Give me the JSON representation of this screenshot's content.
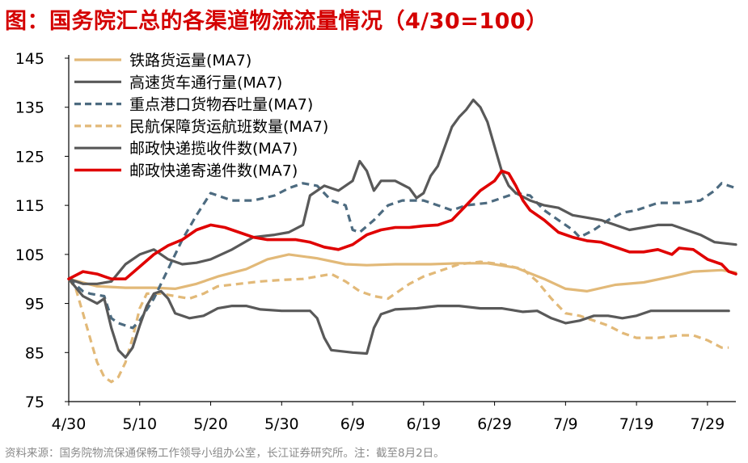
{
  "title": "图：国务院汇总的各渠道物流流量情况（4/30=100）",
  "source": "资料来源：国务院物流保通保畅工作领导小组办公室，长江证券研究所。注：截至8月2日。",
  "chart_data": {
    "type": "line",
    "ylim": [
      75,
      145
    ],
    "yticks": [
      75,
      85,
      95,
      105,
      115,
      125,
      135,
      145
    ],
    "ytick_labels": [
      "75",
      "85",
      "95",
      "105",
      "115",
      "125",
      "135",
      "145"
    ],
    "x_range": [
      0,
      94
    ],
    "xtick_positions": [
      0,
      10,
      20,
      30,
      40,
      50,
      60,
      70,
      80,
      90
    ],
    "xtick_labels": [
      "4/30",
      "5/10",
      "5/20",
      "5/30",
      "6/9",
      "6/19",
      "6/29",
      "7/9",
      "7/19",
      "7/29"
    ],
    "series": [
      {
        "name": "铁路货运量(MA7)",
        "color": "#e2b978",
        "style": "solid",
        "points": [
          [
            0,
            100
          ],
          [
            4,
            98.5
          ],
          [
            8,
            98.2
          ],
          [
            12,
            98.2
          ],
          [
            15,
            98
          ],
          [
            18,
            99
          ],
          [
            21,
            100.5
          ],
          [
            25,
            102
          ],
          [
            28,
            104
          ],
          [
            31,
            105
          ],
          [
            35,
            104.2
          ],
          [
            39,
            103
          ],
          [
            42,
            102.8
          ],
          [
            46,
            103
          ],
          [
            51,
            103
          ],
          [
            55,
            103.2
          ],
          [
            59,
            103.2
          ],
          [
            63,
            102.3
          ],
          [
            67,
            100
          ],
          [
            70,
            98
          ],
          [
            73,
            97.5
          ],
          [
            77,
            98.8
          ],
          [
            81,
            99.3
          ],
          [
            85,
            100.5
          ],
          [
            88,
            101.5
          ],
          [
            92,
            101.8
          ],
          [
            94,
            101.3
          ]
        ]
      },
      {
        "name": "高速货车通行量(MA7)",
        "color": "#595959",
        "style": "solid",
        "points": [
          [
            0,
            100
          ],
          [
            2,
            96.5
          ],
          [
            4,
            95
          ],
          [
            5,
            96
          ],
          [
            6,
            90
          ],
          [
            7,
            85.5
          ],
          [
            8,
            84
          ],
          [
            9,
            86
          ],
          [
            10,
            90.5
          ],
          [
            11,
            94.5
          ],
          [
            12,
            97
          ],
          [
            13,
            97.5
          ],
          [
            14,
            96
          ],
          [
            15,
            93
          ],
          [
            17,
            92
          ],
          [
            19,
            92.5
          ],
          [
            21,
            94
          ],
          [
            23,
            94.5
          ],
          [
            25,
            94.5
          ],
          [
            27,
            93.8
          ],
          [
            30,
            93.5
          ],
          [
            34,
            93.5
          ],
          [
            35,
            92
          ],
          [
            36,
            88
          ],
          [
            37,
            85.5
          ],
          [
            40,
            85
          ],
          [
            42,
            84.8
          ],
          [
            43,
            90
          ],
          [
            44,
            92.8
          ],
          [
            46,
            93.8
          ],
          [
            49,
            94
          ],
          [
            52,
            94.5
          ],
          [
            55,
            94.5
          ],
          [
            58,
            94
          ],
          [
            61,
            94
          ],
          [
            64,
            93.3
          ],
          [
            66,
            93.5
          ],
          [
            68,
            92
          ],
          [
            70,
            91
          ],
          [
            72,
            91.5
          ],
          [
            74,
            92.5
          ],
          [
            76,
            92.5
          ],
          [
            78,
            92
          ],
          [
            80,
            92.5
          ],
          [
            82,
            93.5
          ],
          [
            85,
            93.5
          ],
          [
            88,
            93.5
          ],
          [
            91,
            93.5
          ],
          [
            93,
            93.5
          ]
        ]
      },
      {
        "name": "重点港口货物吞吐量(MA7)",
        "color": "#4d6b80",
        "style": "dashed",
        "points": [
          [
            0,
            100
          ],
          [
            2,
            97.5
          ],
          [
            3,
            97
          ],
          [
            5,
            96.5
          ],
          [
            6,
            92
          ],
          [
            7,
            91
          ],
          [
            8,
            90.5
          ],
          [
            9,
            90
          ],
          [
            10,
            91.5
          ],
          [
            12,
            96
          ],
          [
            14,
            102
          ],
          [
            16,
            108
          ],
          [
            18,
            113
          ],
          [
            20,
            117.5
          ],
          [
            23,
            116
          ],
          [
            26,
            116
          ],
          [
            29,
            117
          ],
          [
            31,
            118.5
          ],
          [
            33,
            119.5
          ],
          [
            35,
            119
          ],
          [
            37,
            116
          ],
          [
            39,
            115
          ],
          [
            40,
            110
          ],
          [
            41,
            109.5
          ],
          [
            43,
            112
          ],
          [
            45,
            115
          ],
          [
            47,
            116
          ],
          [
            50,
            116
          ],
          [
            52,
            115
          ],
          [
            54,
            114
          ],
          [
            56,
            115
          ],
          [
            59,
            115.5
          ],
          [
            61,
            116.5
          ],
          [
            63,
            117.5
          ],
          [
            65,
            117
          ],
          [
            67,
            114
          ],
          [
            69,
            112
          ],
          [
            71,
            110
          ],
          [
            72,
            108.5
          ],
          [
            74,
            110
          ],
          [
            76,
            112
          ],
          [
            78,
            113.5
          ],
          [
            80,
            114
          ],
          [
            83,
            115.5
          ],
          [
            86,
            115.5
          ],
          [
            89,
            116
          ],
          [
            91,
            118
          ],
          [
            92,
            119.5
          ],
          [
            94,
            118.5
          ]
        ]
      },
      {
        "name": "民航保障货运航班数量(MA7)",
        "color": "#e2b978",
        "style": "dashed",
        "points": [
          [
            0,
            100
          ],
          [
            1,
            98
          ],
          [
            2,
            93
          ],
          [
            3,
            88
          ],
          [
            4,
            83
          ],
          [
            5,
            80
          ],
          [
            6,
            79
          ],
          [
            7,
            80
          ],
          [
            8,
            83
          ],
          [
            9,
            88
          ],
          [
            10,
            94
          ],
          [
            11,
            97
          ],
          [
            13,
            97
          ],
          [
            15,
            96.5
          ],
          [
            17,
            96
          ],
          [
            19,
            97
          ],
          [
            21,
            98.5
          ],
          [
            24,
            99
          ],
          [
            27,
            99.5
          ],
          [
            30,
            99.8
          ],
          [
            33,
            100
          ],
          [
            35,
            100.5
          ],
          [
            37,
            101
          ],
          [
            39,
            99.5
          ],
          [
            41,
            97.5
          ],
          [
            43,
            96.5
          ],
          [
            45,
            96
          ],
          [
            46,
            97
          ],
          [
            48,
            99
          ],
          [
            50,
            100.5
          ],
          [
            53,
            102
          ],
          [
            55,
            103
          ],
          [
            58,
            103.5
          ],
          [
            61,
            103
          ],
          [
            64,
            102
          ],
          [
            66,
            99.5
          ],
          [
            68,
            96
          ],
          [
            70,
            93
          ],
          [
            72,
            92.5
          ],
          [
            74,
            91.5
          ],
          [
            76,
            90.5
          ],
          [
            78,
            89
          ],
          [
            80,
            88
          ],
          [
            83,
            88
          ],
          [
            86,
            88.5
          ],
          [
            88,
            88.5
          ],
          [
            90,
            87.5
          ],
          [
            92,
            86
          ],
          [
            93,
            86
          ]
        ]
      },
      {
        "name": "邮政快递揽收件数(MA7)",
        "color": "#595959",
        "style": "solid",
        "points": [
          [
            0,
            100
          ],
          [
            2,
            99
          ],
          [
            4,
            99
          ],
          [
            6,
            99.5
          ],
          [
            8,
            103
          ],
          [
            10,
            105
          ],
          [
            12,
            106
          ],
          [
            14,
            104
          ],
          [
            16,
            103
          ],
          [
            18,
            103.3
          ],
          [
            20,
            104
          ],
          [
            23,
            106
          ],
          [
            26,
            108.5
          ],
          [
            29,
            109
          ],
          [
            31,
            109.5
          ],
          [
            33,
            111
          ],
          [
            34,
            117
          ],
          [
            36,
            119
          ],
          [
            38,
            118
          ],
          [
            40,
            120
          ],
          [
            41,
            124
          ],
          [
            42,
            122
          ],
          [
            43,
            118
          ],
          [
            44,
            120
          ],
          [
            46,
            120
          ],
          [
            48,
            118.5
          ],
          [
            49,
            116.5
          ],
          [
            50,
            117.5
          ],
          [
            51,
            121
          ],
          [
            52,
            123
          ],
          [
            53,
            127
          ],
          [
            54,
            131
          ],
          [
            55,
            133
          ],
          [
            56,
            134.5
          ],
          [
            57,
            136.5
          ],
          [
            58,
            135
          ],
          [
            59,
            132
          ],
          [
            60,
            127
          ],
          [
            61,
            122
          ],
          [
            62,
            119
          ],
          [
            63,
            117.5
          ],
          [
            65,
            116
          ],
          [
            67,
            115
          ],
          [
            69,
            114.5
          ],
          [
            71,
            113
          ],
          [
            73,
            112.5
          ],
          [
            75,
            112
          ],
          [
            77,
            111
          ],
          [
            79,
            110
          ],
          [
            81,
            110.5
          ],
          [
            83,
            111
          ],
          [
            85,
            111
          ],
          [
            87,
            110
          ],
          [
            89,
            109
          ],
          [
            91,
            107.5
          ],
          [
            94,
            107
          ]
        ]
      },
      {
        "name": "邮政快递寄递件数(MA7)",
        "color": "#e00000",
        "style": "solid",
        "points": [
          [
            0,
            100
          ],
          [
            2,
            101.5
          ],
          [
            4,
            101
          ],
          [
            6,
            100
          ],
          [
            8,
            100
          ],
          [
            10,
            102.5
          ],
          [
            12,
            105
          ],
          [
            14,
            106.8
          ],
          [
            16,
            108
          ],
          [
            18,
            110
          ],
          [
            20,
            111
          ],
          [
            22,
            110.5
          ],
          [
            24,
            109.5
          ],
          [
            26,
            108.5
          ],
          [
            28,
            108
          ],
          [
            30,
            108
          ],
          [
            32,
            108
          ],
          [
            34,
            107.5
          ],
          [
            36,
            106.5
          ],
          [
            38,
            106
          ],
          [
            40,
            107
          ],
          [
            42,
            109
          ],
          [
            44,
            110
          ],
          [
            46,
            110.5
          ],
          [
            48,
            110.5
          ],
          [
            50,
            110.8
          ],
          [
            52,
            111
          ],
          [
            54,
            112
          ],
          [
            56,
            115
          ],
          [
            58,
            118
          ],
          [
            60,
            120
          ],
          [
            61,
            122
          ],
          [
            62,
            121.5
          ],
          [
            63,
            119
          ],
          [
            64,
            116
          ],
          [
            65,
            114
          ],
          [
            67,
            112
          ],
          [
            69,
            109.5
          ],
          [
            71,
            108.5
          ],
          [
            73,
            107.8
          ],
          [
            75,
            107.5
          ],
          [
            77,
            106.5
          ],
          [
            79,
            105.5
          ],
          [
            81,
            105.5
          ],
          [
            83,
            106
          ],
          [
            85,
            105
          ],
          [
            86,
            106.3
          ],
          [
            88,
            106
          ],
          [
            90,
            104
          ],
          [
            92,
            103
          ],
          [
            93,
            101.5
          ],
          [
            94,
            101
          ]
        ]
      }
    ]
  }
}
